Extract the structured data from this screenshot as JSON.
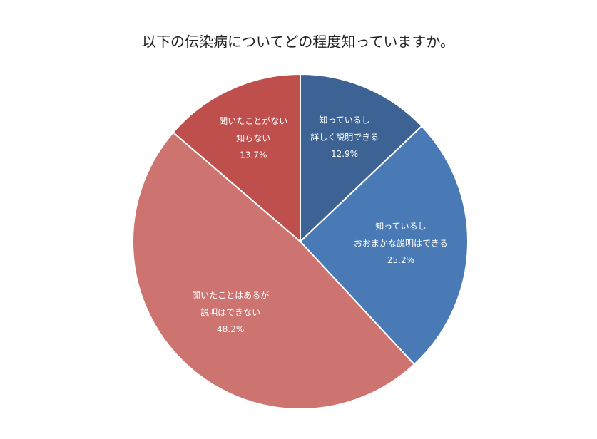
{
  "chart_data": {
    "type": "pie",
    "title": "以下の伝染病についてどの程度知っていますか。",
    "categories": [
      "知っているし\n詳しく説明できる",
      "知っているし\nおおまかな説明はできる",
      "聞いたことはあるが\n説明はできない",
      "聞いたことがない\n知らない"
    ],
    "values": [
      12.9,
      25.2,
      48.2,
      13.7
    ],
    "value_labels": [
      "12.9%",
      "25.2%",
      "48.2%",
      "13.7%"
    ],
    "colors": [
      "#3d6395",
      "#4a7ab5",
      "#cd7471",
      "#bf4f4d"
    ]
  }
}
